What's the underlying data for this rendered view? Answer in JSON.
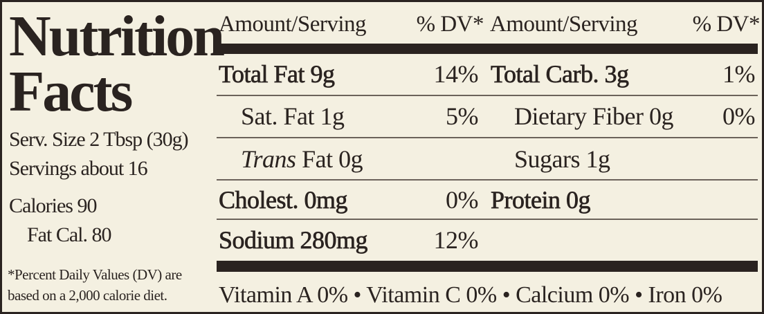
{
  "title": {
    "line1": "Nutrition",
    "line2": "Facts"
  },
  "serving": {
    "size": "Serv. Size 2 Tbsp (30g)",
    "servings": "Servings about 16",
    "calories": "Calories 90",
    "fat_calories": "Fat Cal. 80"
  },
  "footnote": {
    "line1": "*Percent Daily Values (DV) are",
    "line2": "based on a 2,000 calorie diet."
  },
  "header": {
    "left_amount": "Amount/Serving",
    "left_dv": "% DV*",
    "right_amount": "Amount/Serving",
    "right_dv": "% DV*"
  },
  "rows": [
    {
      "left_label": "Total Fat 9g",
      "left_dv": "14%",
      "right_label": "Total Carb. 3g",
      "right_dv": "1%"
    },
    {
      "left_label": "Sat. Fat 1g",
      "left_dv": "5%",
      "right_label": "Dietary Fiber 0g",
      "right_dv": "0%"
    },
    {
      "left_italic": "Trans",
      "left_label": "Fat 0g",
      "right_label": "Sugars 1g"
    },
    {
      "left_label": "Cholest. 0mg",
      "left_dv": "0%",
      "right_label": "Protein 0g"
    },
    {
      "left_label": "Sodium 280mg",
      "left_dv": "12%"
    }
  ],
  "vitamins": "Vitamin A 0% • Vitamin C 0% • Calcium 0% • Iron 0%"
}
